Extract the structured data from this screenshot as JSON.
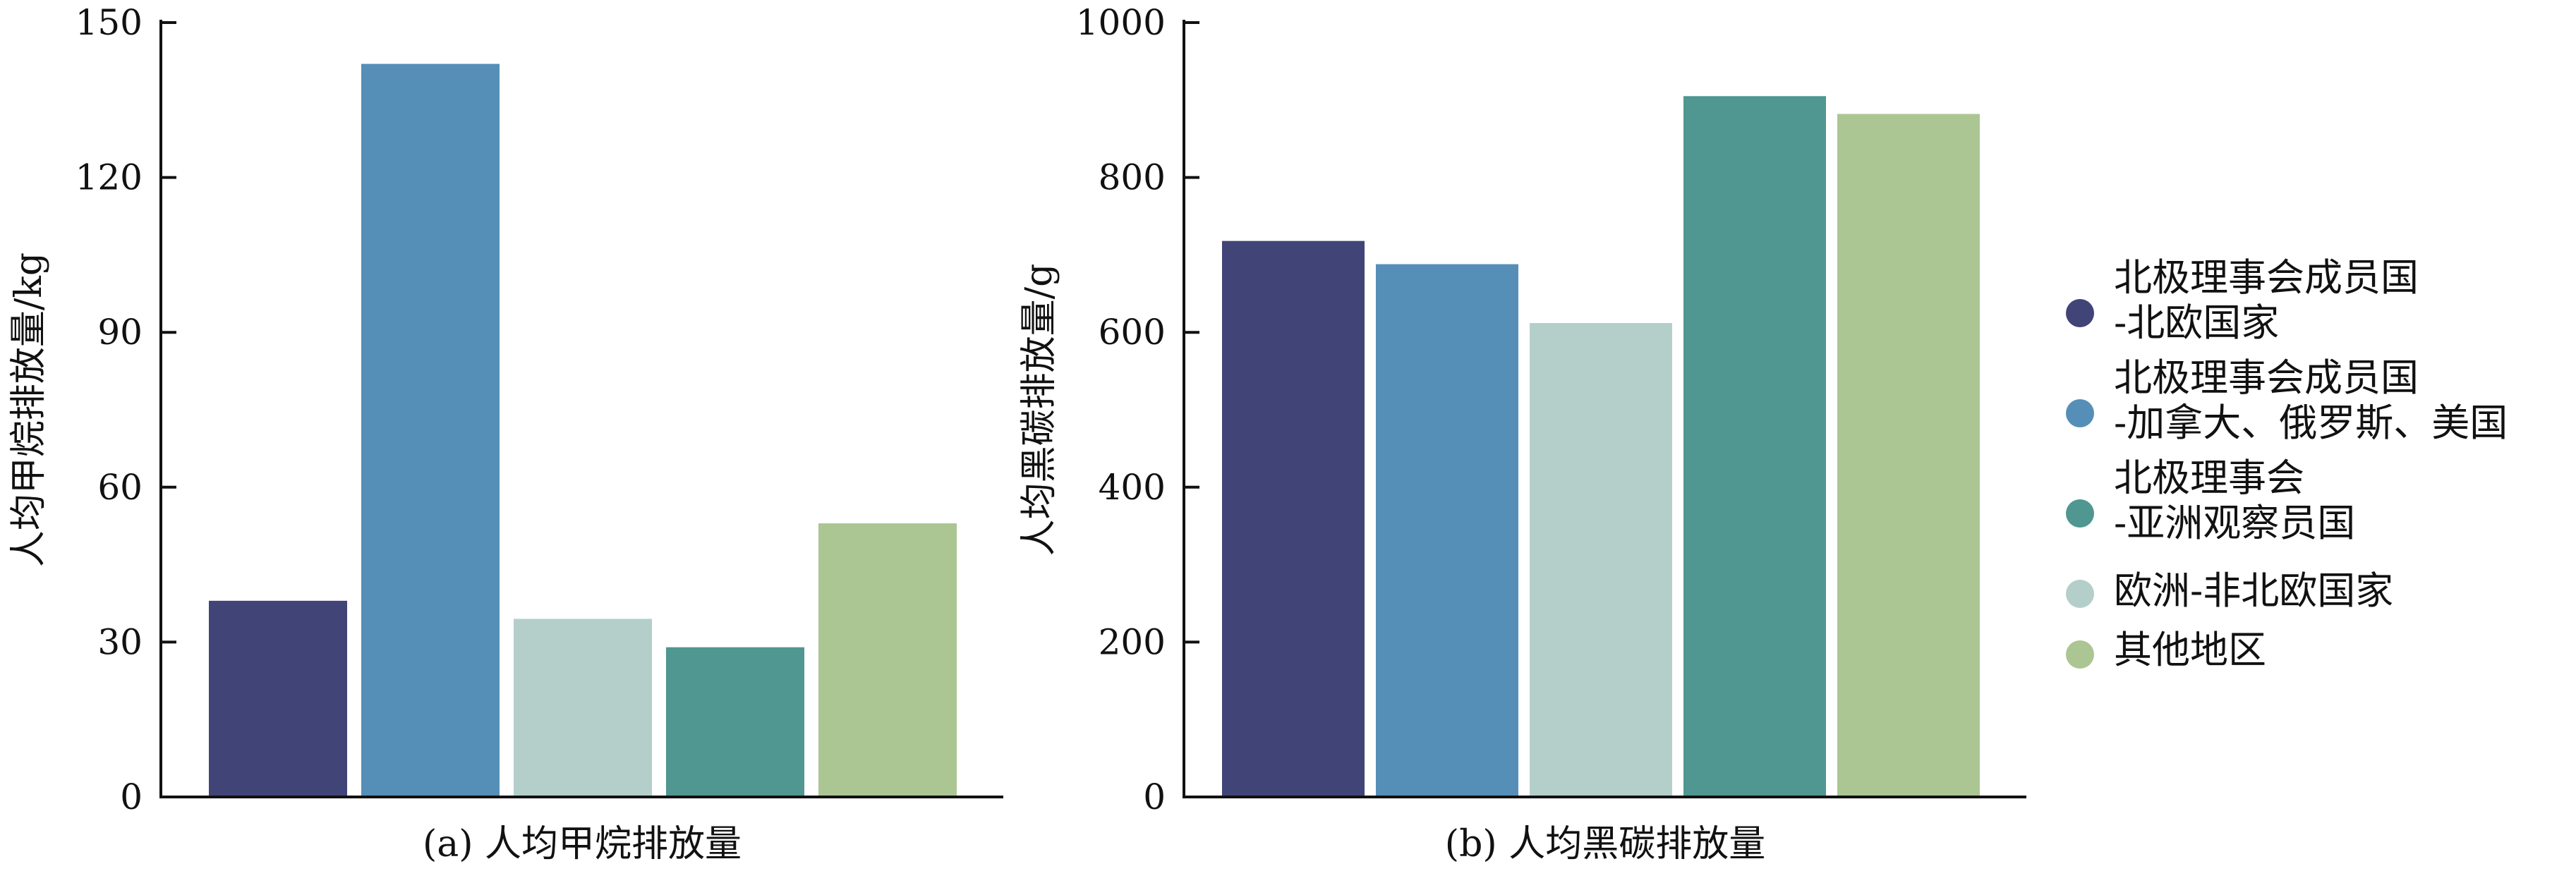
{
  "chart_data": [
    {
      "type": "bar",
      "title": "(a) 人均甲烷排放量",
      "ylabel": "人均甲烷排放量/kg",
      "ylim": [
        0,
        150
      ],
      "yticks": [
        0,
        30,
        60,
        90,
        120,
        150
      ],
      "categories": [
        "北极理事会成员国-北欧国家",
        "北极理事会成员国-加拿大、俄罗斯、美国",
        "欧洲-非北欧国家",
        "北极理事会-亚洲观察员国",
        "其他地区"
      ],
      "values": [
        38,
        142,
        34.5,
        29,
        53
      ],
      "colors": [
        "#404477",
        "#558fb8",
        "#b4cfca",
        "#4f9790",
        "#abc692"
      ]
    },
    {
      "type": "bar",
      "title": "(b) 人均黑碳排放量",
      "ylabel": "人均黑碳排放量/g",
      "ylim": [
        0,
        1000
      ],
      "yticks": [
        0,
        200,
        400,
        600,
        800,
        1000
      ],
      "categories": [
        "北极理事会成员国-北欧国家",
        "北极理事会成员国-加拿大、俄罗斯、美国",
        "欧洲-非北欧国家",
        "北极理事会-亚洲观察员国",
        "其他地区"
      ],
      "values": [
        718,
        688,
        612,
        905,
        882
      ],
      "colors": [
        "#404477",
        "#558fb8",
        "#b4cfca",
        "#4f9790",
        "#abc692"
      ]
    }
  ],
  "legend": {
    "placement": "right",
    "items": [
      {
        "lines": [
          "北极理事会成员国",
          "-北欧国家"
        ],
        "color": "#404477"
      },
      {
        "lines": [
          "北极理事会成员国",
          "-加拿大、俄罗斯、美国"
        ],
        "color": "#558fb8"
      },
      {
        "lines": [
          "北极理事会",
          "-亚洲观察员国"
        ],
        "color": "#4f9790"
      },
      {
        "lines": [
          "欧洲-非北欧国家"
        ],
        "color": "#b4cfca"
      },
      {
        "lines": [
          "其他地区"
        ],
        "color": "#abc692"
      }
    ]
  }
}
